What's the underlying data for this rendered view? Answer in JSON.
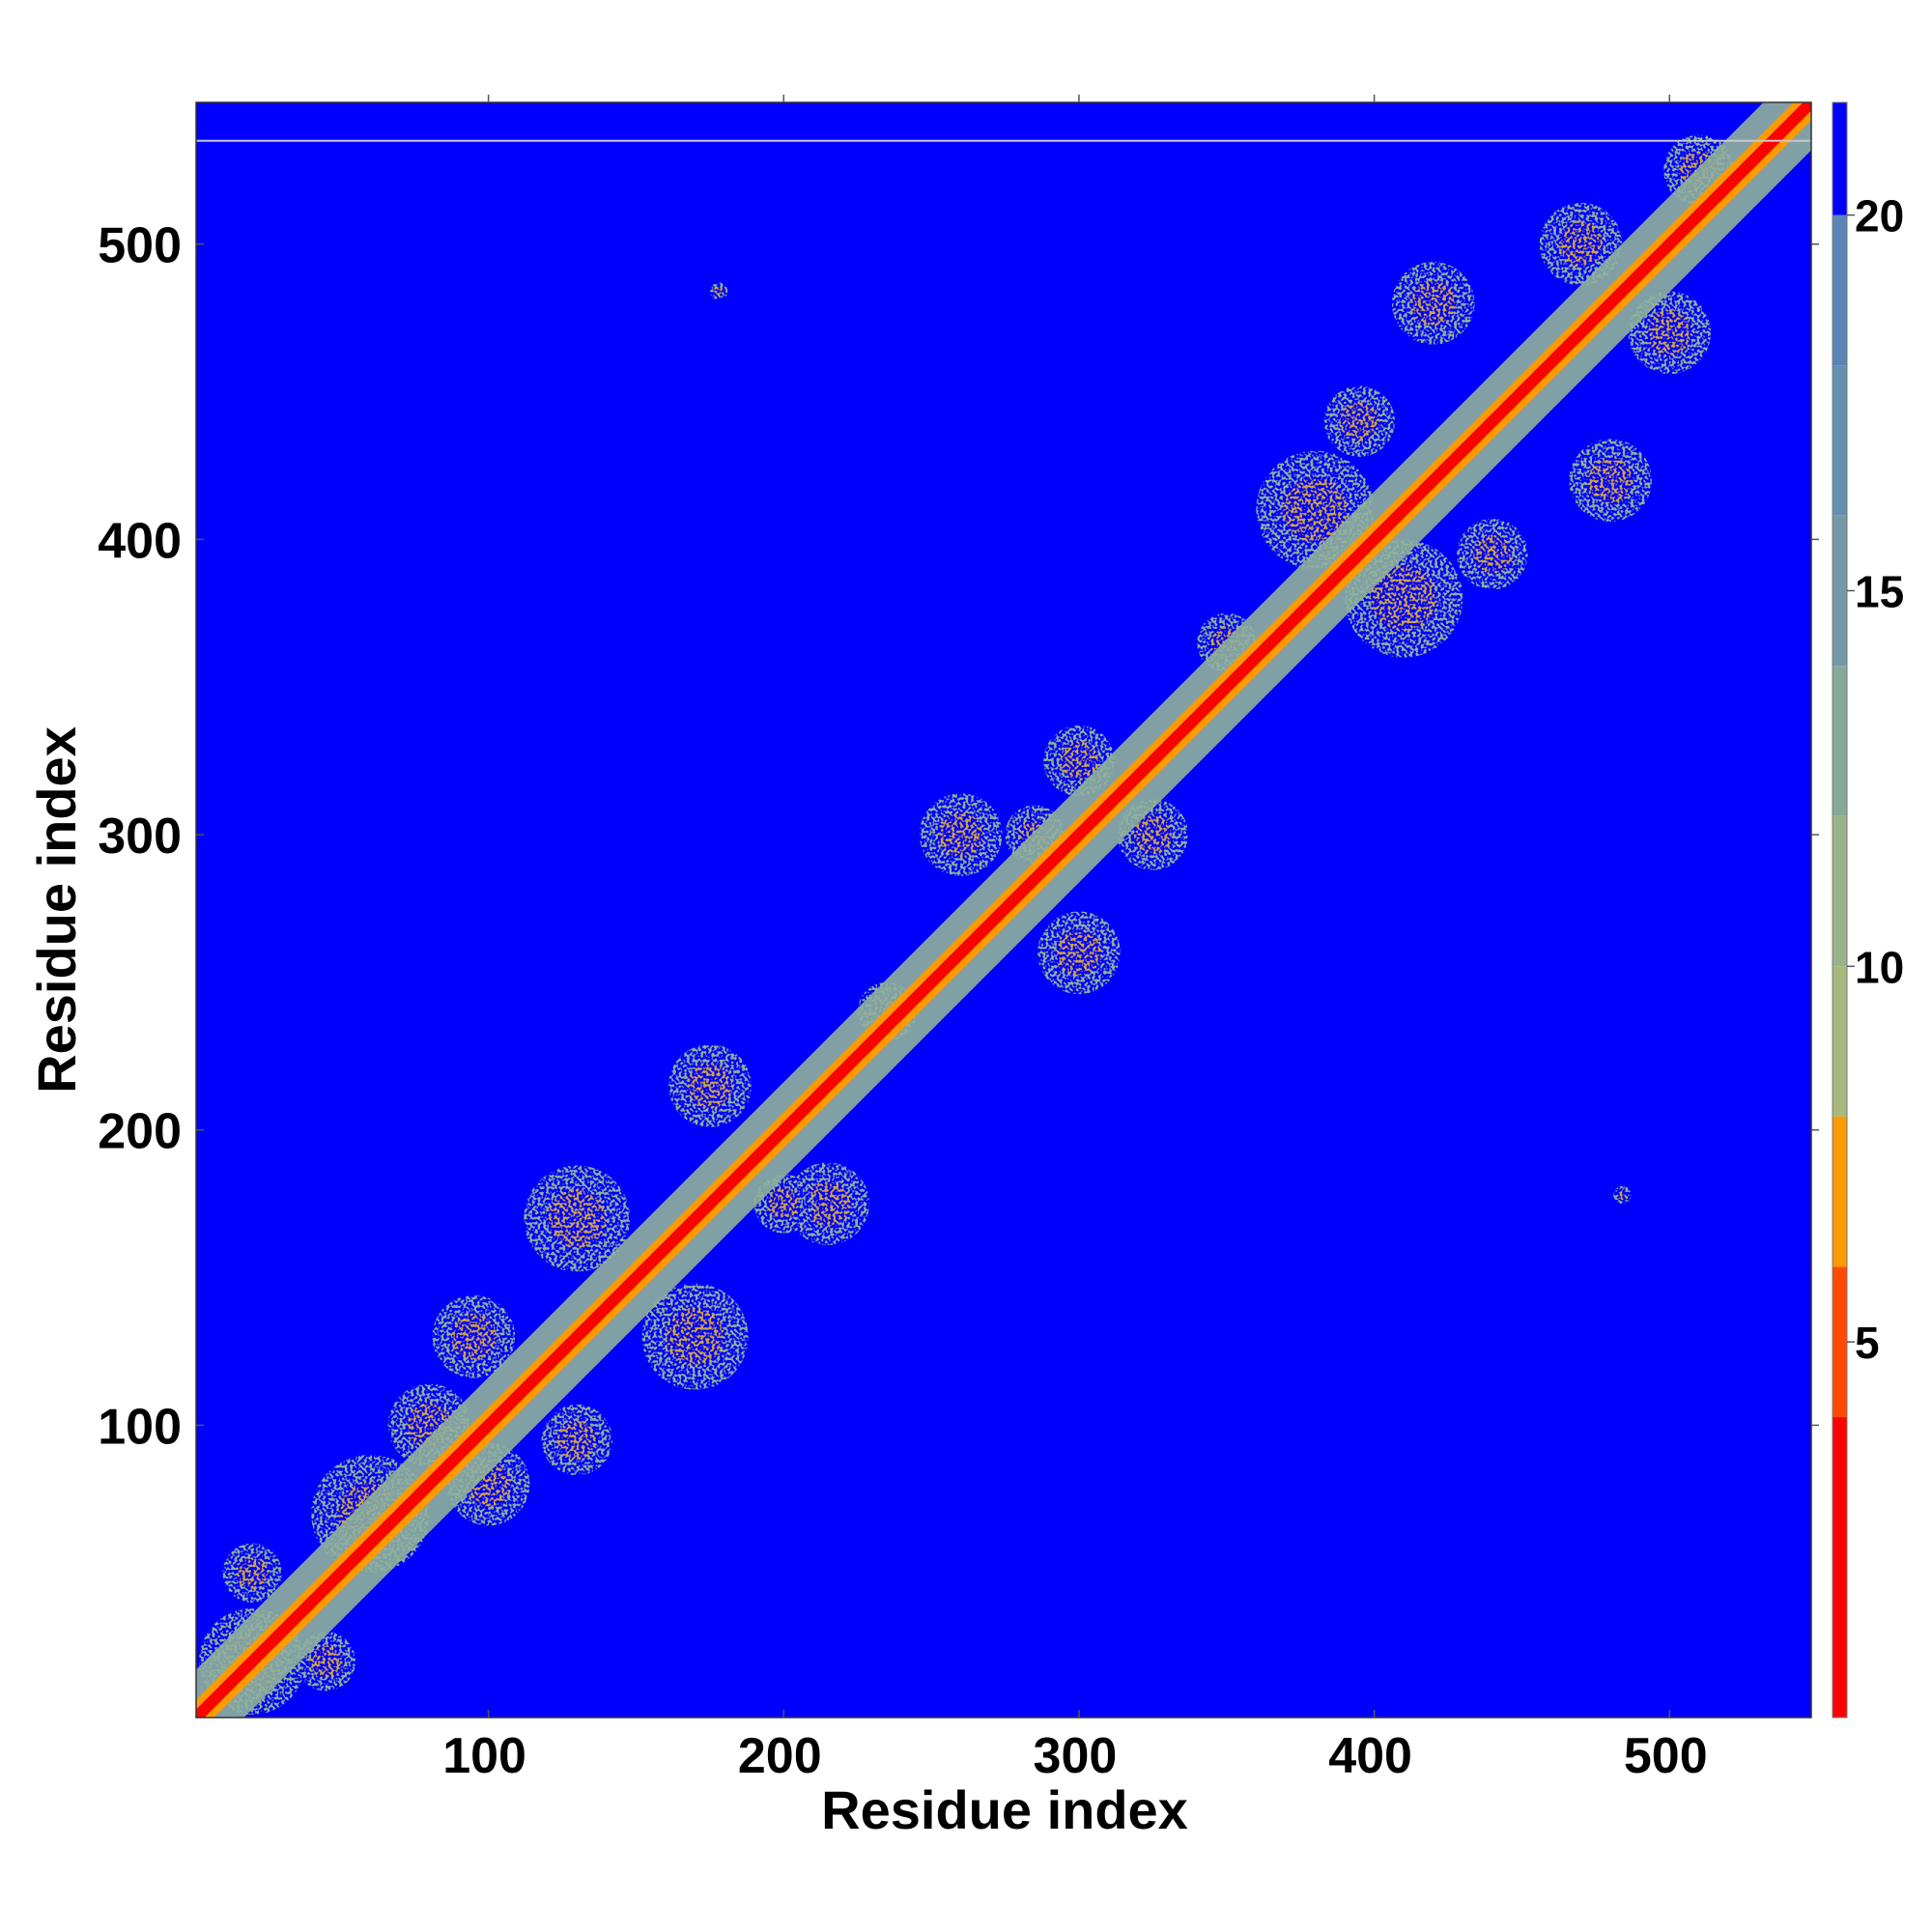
{
  "chart_data": {
    "type": "heatmap",
    "title": "",
    "xlabel": "Residue index",
    "ylabel": "Residue index",
    "xlim": [
      1,
      548
    ],
    "ylim": [
      1,
      548
    ],
    "x_ticks": [
      100,
      200,
      300,
      400,
      500
    ],
    "y_ticks": [
      100,
      200,
      300,
      400,
      500
    ],
    "colorbar": {
      "range": [
        0,
        21.5
      ],
      "ticks": [
        5,
        10,
        15,
        20
      ],
      "bands": [
        {
          "from": 0.0,
          "to": 4.0,
          "color": "#ff0000"
        },
        {
          "from": 4.0,
          "to": 6.0,
          "color": "#ff4a00"
        },
        {
          "from": 6.0,
          "to": 8.0,
          "color": "#ff9a00"
        },
        {
          "from": 8.0,
          "to": 10.0,
          "color": "#a8b77c"
        },
        {
          "from": 10.0,
          "to": 12.0,
          "color": "#98b28a"
        },
        {
          "from": 12.0,
          "to": 14.0,
          "color": "#86a898"
        },
        {
          "from": 14.0,
          "to": 16.0,
          "color": "#739aa6"
        },
        {
          "from": 16.0,
          "to": 18.0,
          "color": "#6490b0"
        },
        {
          "from": 18.0,
          "to": 20.0,
          "color": "#5a86b6"
        },
        {
          "from": 20.0,
          "to": 21.5,
          "color": "#0000ff"
        }
      ]
    },
    "background_color": "#0000ff",
    "diagonal_color": "#ff0000",
    "near_diagonal_color": "#ff9a00",
    "contact_color": "#8fb09a",
    "blocked_row_residue": 535,
    "contact_clusters": [
      {
        "x": 20,
        "y": 20,
        "r": 18
      },
      {
        "x": 45,
        "y": 20,
        "r": 10
      },
      {
        "x": 20,
        "y": 50,
        "r": 10
      },
      {
        "x": 60,
        "y": 70,
        "r": 20
      },
      {
        "x": 80,
        "y": 100,
        "r": 14
      },
      {
        "x": 100,
        "y": 80,
        "r": 14
      },
      {
        "x": 95,
        "y": 130,
        "r": 14
      },
      {
        "x": 130,
        "y": 95,
        "r": 12
      },
      {
        "x": 130,
        "y": 170,
        "r": 18
      },
      {
        "x": 170,
        "y": 130,
        "r": 18
      },
      {
        "x": 175,
        "y": 215,
        "r": 14
      },
      {
        "x": 215,
        "y": 175,
        "r": 14
      },
      {
        "x": 200,
        "y": 175,
        "r": 10
      },
      {
        "x": 235,
        "y": 240,
        "r": 10
      },
      {
        "x": 260,
        "y": 300,
        "r": 14
      },
      {
        "x": 300,
        "y": 260,
        "r": 14
      },
      {
        "x": 285,
        "y": 300,
        "r": 10
      },
      {
        "x": 300,
        "y": 325,
        "r": 12
      },
      {
        "x": 325,
        "y": 300,
        "r": 12
      },
      {
        "x": 350,
        "y": 365,
        "r": 10
      },
      {
        "x": 380,
        "y": 410,
        "r": 20
      },
      {
        "x": 410,
        "y": 380,
        "r": 20
      },
      {
        "x": 395,
        "y": 440,
        "r": 12
      },
      {
        "x": 440,
        "y": 395,
        "r": 12
      },
      {
        "x": 420,
        "y": 480,
        "r": 14
      },
      {
        "x": 480,
        "y": 420,
        "r": 14
      },
      {
        "x": 470,
        "y": 500,
        "r": 14
      },
      {
        "x": 500,
        "y": 470,
        "r": 14
      },
      {
        "x": 510,
        "y": 525,
        "r": 12
      },
      {
        "x": 178,
        "y": 484,
        "r": 3
      },
      {
        "x": 484,
        "y": 178,
        "r": 3
      }
    ]
  }
}
